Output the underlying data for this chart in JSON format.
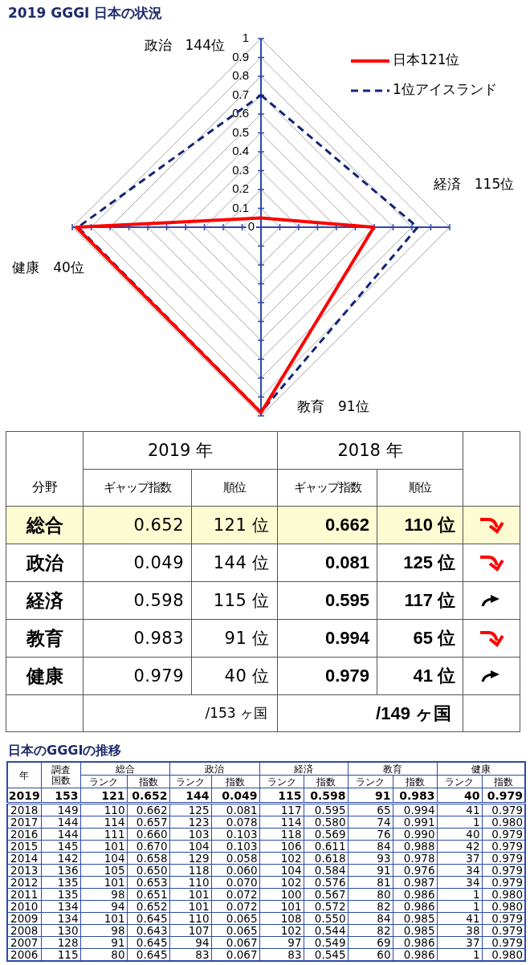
{
  "chart_data": [
    {
      "type": "radar",
      "title": "2019 GGGI 日本の状況",
      "categories": [
        "政治　144位",
        "経済　115位",
        "教育　91位",
        "健康　40位"
      ],
      "series": [
        {
          "name": "日本121位",
          "color": "#ff0000",
          "values": [
            0.049,
            0.598,
            0.983,
            0.979
          ],
          "line_style": "solid"
        },
        {
          "name": "1位アイスランド",
          "color": "#14247a",
          "values": [
            0.7,
            0.83,
            0.98,
            0.97
          ],
          "line_style": "dashed"
        }
      ],
      "ylim": [
        0,
        1
      ],
      "yticks": [
        0,
        0.1,
        0.2,
        0.3,
        0.4,
        0.5,
        0.6,
        0.7,
        0.8,
        0.9,
        1
      ],
      "grid": true,
      "legend": "top right",
      "marker": "none"
    },
    {
      "type": "heatmap",
      "categories": [
        "ギャップ指数",
        "順位",
        "ギャップ指数",
        "順位"
      ],
      "y_categories": [
        "総合",
        "政治",
        "経済",
        "教育",
        "健康"
      ],
      "cells": [
        [
          0.652,
          121,
          0.662,
          110
        ],
        [
          0.049,
          144,
          0.081,
          125
        ],
        [
          0.598,
          115,
          0.595,
          117
        ],
        [
          0.983,
          91,
          0.994,
          65
        ],
        [
          0.979,
          40,
          0.979,
          41
        ]
      ],
      "cell_labels": [
        [
          "0.652",
          "121 位",
          "0.662",
          "110 位"
        ],
        [
          "0.049",
          "144 位",
          "0.081",
          "125 位"
        ],
        [
          "0.598",
          "115 位",
          "0.595",
          "117 位"
        ],
        [
          "0.983",
          "91 位",
          "0.994",
          "65 位"
        ],
        [
          "0.979",
          "40 位",
          "0.979",
          "41 位"
        ]
      ],
      "annotations": [
        "2019 年",
        "2018 年",
        "分野",
        "/153 ヶ国",
        "/149 ヶ国"
      ]
    },
    {
      "type": "heatmap",
      "title": "日本のGGGIの推移",
      "categories": [
        "調査国数",
        "ランク",
        "指数",
        "ランク",
        "指数",
        "ランク",
        "指数",
        "ランク",
        "指数",
        "ランク",
        "指数"
      ],
      "y_categories": [
        "2019",
        "2018",
        "2017",
        "2016",
        "2015",
        "2014",
        "2013",
        "2012",
        "2011",
        "2010",
        "2009",
        "2008",
        "2007",
        "2006"
      ],
      "cells": [
        [
          153,
          121,
          0.652,
          144,
          0.049,
          115,
          0.598,
          91,
          0.983,
          40,
          0.979
        ],
        [
          149,
          110,
          0.662,
          125,
          0.081,
          117,
          0.595,
          65,
          0.994,
          41,
          0.979
        ],
        [
          144,
          114,
          0.657,
          123,
          0.078,
          114,
          0.58,
          74,
          0.991,
          1,
          0.98
        ],
        [
          144,
          111,
          0.66,
          103,
          0.103,
          118,
          0.569,
          76,
          0.99,
          40,
          0.979
        ],
        [
          145,
          101,
          0.67,
          104,
          0.103,
          106,
          0.611,
          84,
          0.988,
          42,
          0.979
        ],
        [
          142,
          104,
          0.658,
          129,
          0.058,
          102,
          0.618,
          93,
          0.978,
          37,
          0.979
        ],
        [
          136,
          105,
          0.65,
          118,
          0.06,
          104,
          0.584,
          91,
          0.976,
          34,
          0.979
        ],
        [
          135,
          101,
          0.653,
          110,
          0.07,
          102,
          0.576,
          81,
          0.987,
          34,
          0.979
        ],
        [
          135,
          98,
          0.651,
          101,
          0.072,
          100,
          0.567,
          80,
          0.986,
          1,
          0.98
        ],
        [
          134,
          94,
          0.652,
          101,
          0.072,
          101,
          0.572,
          82,
          0.986,
          1,
          0.98
        ],
        [
          134,
          101,
          0.645,
          110,
          0.065,
          108,
          0.55,
          84,
          0.985,
          41,
          0.979
        ],
        [
          130,
          98,
          0.643,
          107,
          0.065,
          102,
          0.544,
          82,
          0.985,
          38,
          0.979
        ],
        [
          128,
          91,
          0.645,
          94,
          0.067,
          97,
          0.549,
          69,
          0.986,
          37,
          0.979
        ],
        [
          115,
          80,
          0.645,
          83,
          0.067,
          83,
          0.545,
          60,
          0.986,
          1,
          0.98
        ]
      ],
      "cell_labels": [
        [
          "153",
          "121",
          "0.652",
          "144",
          "0.049",
          "115",
          "0.598",
          "91",
          "0.983",
          "40",
          "0.979"
        ],
        [
          "149",
          "110",
          "0.662",
          "125",
          "0.081",
          "117",
          "0.595",
          "65",
          "0.994",
          "41",
          "0.979"
        ],
        [
          "144",
          "114",
          "0.657",
          "123",
          "0.078",
          "114",
          "0.580",
          "74",
          "0.991",
          "1",
          "0.980"
        ],
        [
          "144",
          "111",
          "0.660",
          "103",
          "0.103",
          "118",
          "0.569",
          "76",
          "0.990",
          "40",
          "0.979"
        ],
        [
          "145",
          "101",
          "0.670",
          "104",
          "0.103",
          "106",
          "0.611",
          "84",
          "0.988",
          "42",
          "0.979"
        ],
        [
          "142",
          "104",
          "0.658",
          "129",
          "0.058",
          "102",
          "0.618",
          "93",
          "0.978",
          "37",
          "0.979"
        ],
        [
          "136",
          "105",
          "0.650",
          "118",
          "0.060",
          "104",
          "0.584",
          "91",
          "0.976",
          "34",
          "0.979"
        ],
        [
          "135",
          "101",
          "0.653",
          "110",
          "0.070",
          "102",
          "0.576",
          "81",
          "0.987",
          "34",
          "0.979"
        ],
        [
          "135",
          "98",
          "0.651",
          "101",
          "0.072",
          "100",
          "0.567",
          "80",
          "0.986",
          "1",
          "0.980"
        ],
        [
          "134",
          "94",
          "0.652",
          "101",
          "0.072",
          "101",
          "0.572",
          "82",
          "0.986",
          "1",
          "0.980"
        ],
        [
          "134",
          "101",
          "0.645",
          "110",
          "0.065",
          "108",
          "0.550",
          "84",
          "0.985",
          "41",
          "0.979"
        ],
        [
          "130",
          "98",
          "0.643",
          "107",
          "0.065",
          "102",
          "0.544",
          "82",
          "0.985",
          "38",
          "0.979"
        ],
        [
          "128",
          "91",
          "0.645",
          "94",
          "0.067",
          "97",
          "0.549",
          "69",
          "0.986",
          "37",
          "0.979"
        ],
        [
          "115",
          "80",
          "0.645",
          "83",
          "0.067",
          "83",
          "0.545",
          "60",
          "0.986",
          "1",
          "0.980"
        ]
      ],
      "annotations": [
        "年",
        "総合",
        "政治",
        "経済",
        "教育",
        "健康"
      ]
    }
  ]
}
